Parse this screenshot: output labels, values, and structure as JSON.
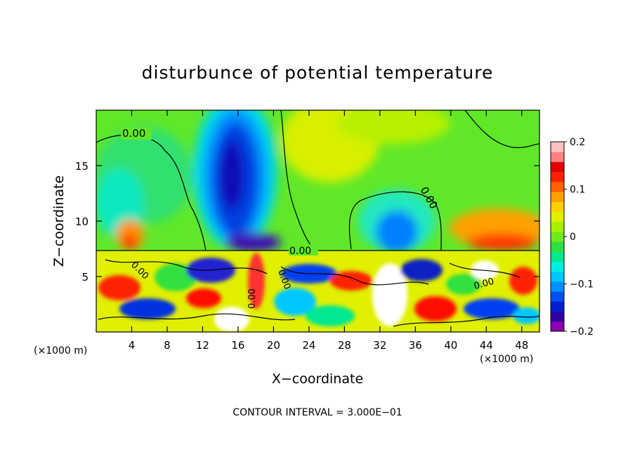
{
  "chart_data": {
    "type": "heatmap",
    "title": "disturbunce of potential temperature",
    "xlabel": "X−coordinate",
    "ylabel": "Z−coordinate",
    "x_unit_left": "(×1000 m)",
    "x_unit_right": "(×1000 m)",
    "xlim": [
      0,
      50
    ],
    "ylim": [
      0,
      20
    ],
    "x_ticks": [
      4,
      8,
      12,
      16,
      20,
      24,
      28,
      32,
      36,
      40,
      44,
      48
    ],
    "y_ticks": [
      5,
      10,
      15
    ],
    "colorbar": {
      "range": [
        -0.2,
        0.2
      ],
      "tick_values": [
        0.2,
        0.1,
        0,
        -0.1,
        -0.2
      ],
      "tick_labels": [
        "0.2",
        "0.1",
        "0",
        "−0.1",
        "−0.2"
      ],
      "colors": [
        "#8a00b0",
        "#3000a0",
        "#0020d0",
        "#0050f0",
        "#0090ff",
        "#00c8ff",
        "#00f0e0",
        "#00e890",
        "#30e040",
        "#70e820",
        "#a8f000",
        "#e0f000",
        "#ffd000",
        "#ffa000",
        "#ff6000",
        "#ff2000",
        "#e00000",
        "#ff8080",
        "#ffc0c0"
      ]
    },
    "contour_labels": [
      "0.00",
      "0.00",
      "0.00",
      "0.00",
      "0.00",
      "0.00",
      "0.00"
    ],
    "contour_interval_text": "CONTOUR INTERVAL = 3.000E−01",
    "grid": false
  }
}
